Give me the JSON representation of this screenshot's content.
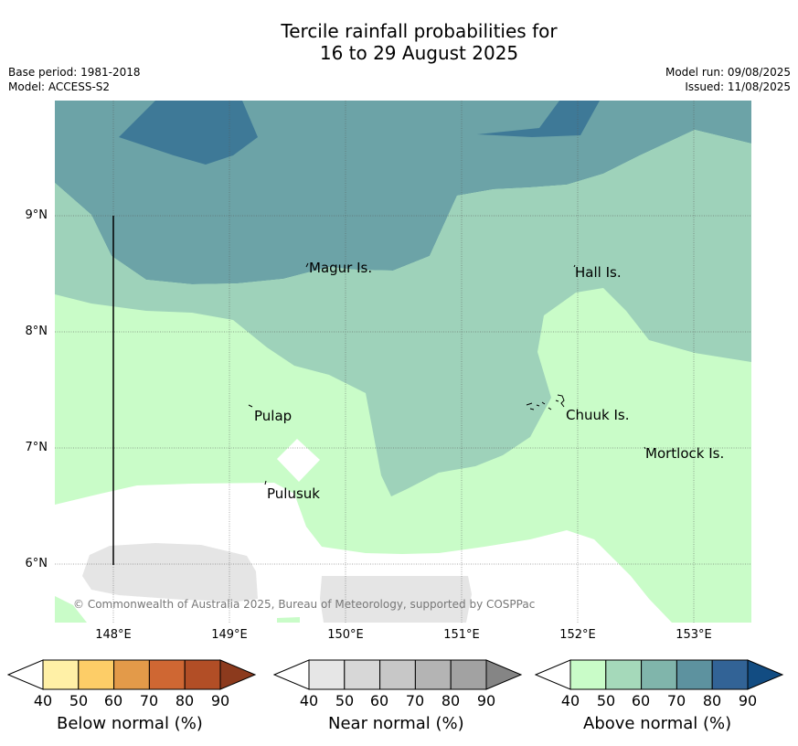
{
  "title": {
    "line1": "Tercile rainfall probabilities for",
    "line2": "16 to 29 August 2025"
  },
  "meta": {
    "base_period": "Base period: 1981-2018",
    "model": "Model: ACCESS-S2",
    "model_run": "Model run: 09/08/2025",
    "issued": "Issued: 11/08/2025"
  },
  "map": {
    "lat_labels": [
      "9°N",
      "8°N",
      "7°N",
      "6°N"
    ],
    "lon_labels": [
      "148°E",
      "149°E",
      "150°E",
      "151°E",
      "152°E",
      "153°E"
    ],
    "places": {
      "magur": "Magur Is.",
      "hall": "Hall Is.",
      "pulap": "Pulap",
      "chuuk": "Chuuk Is.",
      "mortlock": "Mortlock Is.",
      "pulusuk": "Pulusuk"
    },
    "copyright": "© Commonwealth of Australia 2025, Bureau of Meteorology, supported by COSPPac",
    "colors": {
      "above_50": "#c9fcc8",
      "above_60": "#9ed2ba",
      "above_70": "#6ca3a7",
      "above_80": "#3e7997",
      "near_50": "#e5e5e5",
      "white": "#ffffff"
    }
  },
  "colorbars": {
    "below": {
      "label": "Below normal (%)",
      "ticks": [
        "40",
        "50",
        "60",
        "70",
        "80",
        "90"
      ],
      "colors": [
        "#fff0a6",
        "#fdcd67",
        "#e39a49",
        "#cf6733",
        "#b24e26",
        "#8c3a1d"
      ]
    },
    "near": {
      "label": "Near normal (%)",
      "ticks": [
        "40",
        "50",
        "60",
        "70",
        "80",
        "90"
      ],
      "colors": [
        "#e6e6e6",
        "#d7d7d7",
        "#c7c7c7",
        "#b4b4b4",
        "#a2a2a2",
        "#858585"
      ]
    },
    "above": {
      "label": "Above normal (%)",
      "ticks": [
        "40",
        "50",
        "60",
        "70",
        "80",
        "90"
      ],
      "colors": [
        "#c9fcc8",
        "#a5d9ba",
        "#80b5ab",
        "#5d929f",
        "#326396",
        "#124c82"
      ]
    }
  }
}
